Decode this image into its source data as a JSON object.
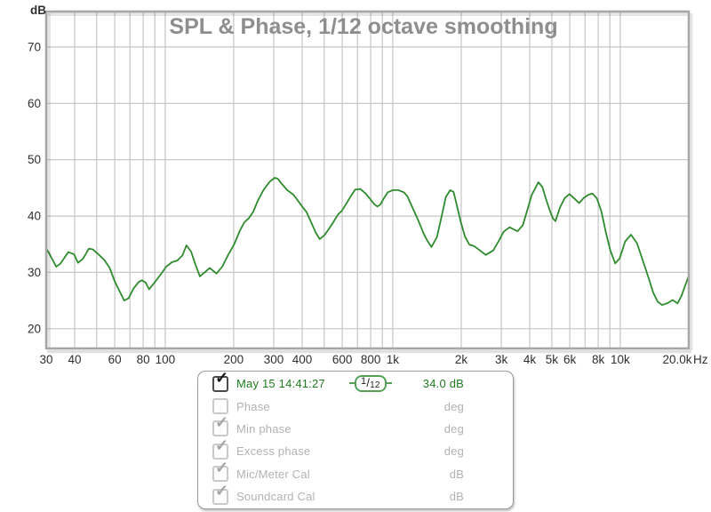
{
  "window": {
    "background": "#ffffff"
  },
  "icons": {
    "check": "✓"
  },
  "chart": {
    "title": "SPL & Phase, 1/12 octave smoothing",
    "y_unit_label": "dB",
    "x_unit_label": "Hz",
    "y_ticks": [
      70,
      60,
      50,
      40,
      30,
      20
    ],
    "x_tick_labels": [
      {
        "text": "30",
        "f": 30
      },
      {
        "text": "40",
        "f": 40
      },
      {
        "text": "60",
        "f": 60
      },
      {
        "text": "80",
        "f": 80
      },
      {
        "text": "100",
        "f": 100
      },
      {
        "text": "200",
        "f": 200
      },
      {
        "text": "300",
        "f": 300
      },
      {
        "text": "400",
        "f": 400
      },
      {
        "text": "600",
        "f": 600
      },
      {
        "text": "800",
        "f": 800
      },
      {
        "text": "1k",
        "f": 1000
      },
      {
        "text": "2k",
        "f": 2000
      },
      {
        "text": "3k",
        "f": 3000
      },
      {
        "text": "4k",
        "f": 4000
      },
      {
        "text": "5k",
        "f": 5000
      },
      {
        "text": "6k",
        "f": 6000
      },
      {
        "text": "8k",
        "f": 8000
      },
      {
        "text": "10k",
        "f": 10000
      },
      {
        "text": "20.0k",
        "f": 20000,
        "dx": -13
      }
    ],
    "colors": {
      "grid": "#c6c6c6",
      "frame": "#a6a6a6",
      "title": "#8e8e8e",
      "axis_text": "#2e2e2e",
      "curve": "#2e8b2e"
    }
  },
  "chart_data": {
    "type": "line",
    "title": "SPL & Phase, 1/12 octave smoothing",
    "xlabel": "Hz",
    "ylabel": "dB",
    "x_scale": "log",
    "xlim": [
      30,
      20000
    ],
    "ylim": [
      16.5,
      76.3
    ],
    "grid": {
      "x_lines": [
        40,
        50,
        60,
        70,
        80,
        90,
        100,
        200,
        300,
        400,
        500,
        600,
        700,
        800,
        900,
        1000,
        2000,
        3000,
        4000,
        5000,
        6000,
        7000,
        8000,
        9000,
        10000,
        20000
      ],
      "y_lines": [
        20,
        30,
        40,
        50,
        60,
        70
      ]
    },
    "legend_position": "bottom",
    "series": [
      {
        "name": "May 15 14:41:27",
        "color": "#2e8b2e",
        "smoothing": "1/12",
        "cursor_value": "34.0 dB",
        "points": [
          [
            30,
            34.2
          ],
          [
            30.8,
            33.5
          ],
          [
            33.2,
            31.0
          ],
          [
            34.7,
            31.6
          ],
          [
            37.5,
            33.6
          ],
          [
            39.8,
            33.2
          ],
          [
            41.4,
            31.7
          ],
          [
            43.5,
            32.4
          ],
          [
            46.2,
            34.2
          ],
          [
            48,
            34.1
          ],
          [
            50,
            33.5
          ],
          [
            54,
            32.2
          ],
          [
            57,
            30.8
          ],
          [
            60,
            28.4
          ],
          [
            63,
            26.7
          ],
          [
            66,
            25.0
          ],
          [
            69,
            25.4
          ],
          [
            72.5,
            27.1
          ],
          [
            76.5,
            28.3
          ],
          [
            79,
            28.6
          ],
          [
            82,
            28.2
          ],
          [
            85,
            27.0
          ],
          [
            89,
            28.0
          ],
          [
            95,
            29.5
          ],
          [
            101,
            31.0
          ],
          [
            107,
            31.8
          ],
          [
            113,
            32.1
          ],
          [
            119,
            33.0
          ],
          [
            124,
            34.8
          ],
          [
            130,
            33.7
          ],
          [
            136,
            31.3
          ],
          [
            142,
            29.3
          ],
          [
            150,
            30.1
          ],
          [
            157,
            30.8
          ],
          [
            168,
            29.8
          ],
          [
            178,
            31.0
          ],
          [
            189,
            33.1
          ],
          [
            201,
            35.0
          ],
          [
            213,
            37.4
          ],
          [
            223,
            38.9
          ],
          [
            233,
            39.6
          ],
          [
            244,
            40.8
          ],
          [
            255,
            42.7
          ],
          [
            271,
            44.7
          ],
          [
            288,
            46.1
          ],
          [
            303,
            46.8
          ],
          [
            313,
            46.6
          ],
          [
            324,
            45.8
          ],
          [
            344,
            44.6
          ],
          [
            366,
            43.8
          ],
          [
            382,
            42.8
          ],
          [
            400,
            41.7
          ],
          [
            418,
            40.7
          ],
          [
            438,
            38.9
          ],
          [
            458,
            37.1
          ],
          [
            478,
            35.9
          ],
          [
            501,
            36.6
          ],
          [
            524,
            37.7
          ],
          [
            548,
            38.9
          ],
          [
            573,
            40.2
          ],
          [
            599,
            41.0
          ],
          [
            627,
            42.3
          ],
          [
            656,
            43.6
          ],
          [
            684,
            44.7
          ],
          [
            720,
            44.8
          ],
          [
            760,
            44.0
          ],
          [
            800,
            42.9
          ],
          [
            830,
            42.1
          ],
          [
            855,
            41.7
          ],
          [
            880,
            42.0
          ],
          [
            910,
            43.0
          ],
          [
            950,
            44.2
          ],
          [
            1000,
            44.6
          ],
          [
            1060,
            44.6
          ],
          [
            1120,
            44.2
          ],
          [
            1160,
            43.5
          ],
          [
            1212,
            41.8
          ],
          [
            1290,
            39.4
          ],
          [
            1370,
            36.8
          ],
          [
            1420,
            35.6
          ],
          [
            1480,
            34.5
          ],
          [
            1565,
            36.3
          ],
          [
            1637,
            39.8
          ],
          [
            1712,
            43.4
          ],
          [
            1790,
            44.6
          ],
          [
            1850,
            44.3
          ],
          [
            1900,
            42.4
          ],
          [
            1990,
            39.0
          ],
          [
            2080,
            36.3
          ],
          [
            2175,
            34.9
          ],
          [
            2275,
            34.7
          ],
          [
            2415,
            33.9
          ],
          [
            2565,
            33.1
          ],
          [
            2765,
            33.9
          ],
          [
            2935,
            35.7
          ],
          [
            3070,
            37.2
          ],
          [
            3260,
            38.0
          ],
          [
            3535,
            37.3
          ],
          [
            3730,
            38.4
          ],
          [
            3900,
            41.0
          ],
          [
            4080,
            43.7
          ],
          [
            4365,
            46.0
          ],
          [
            4550,
            45.1
          ],
          [
            4750,
            42.6
          ],
          [
            4900,
            41.0
          ],
          [
            5050,
            39.6
          ],
          [
            5190,
            39.1
          ],
          [
            5430,
            41.5
          ],
          [
            5700,
            43.2
          ],
          [
            5980,
            43.9
          ],
          [
            6250,
            43.2
          ],
          [
            6590,
            42.3
          ],
          [
            6900,
            43.2
          ],
          [
            7250,
            43.8
          ],
          [
            7550,
            44.0
          ],
          [
            7900,
            43.1
          ],
          [
            8260,
            40.8
          ],
          [
            8640,
            37.1
          ],
          [
            9040,
            33.9
          ],
          [
            9500,
            31.6
          ],
          [
            9940,
            32.5
          ],
          [
            10500,
            35.5
          ],
          [
            11150,
            36.7
          ],
          [
            11840,
            35.2
          ],
          [
            12560,
            32.1
          ],
          [
            13340,
            28.9
          ],
          [
            13960,
            26.4
          ],
          [
            14600,
            24.8
          ],
          [
            15270,
            24.2
          ],
          [
            16220,
            24.6
          ],
          [
            16970,
            25.1
          ],
          [
            17840,
            24.5
          ],
          [
            18560,
            25.8
          ],
          [
            19250,
            27.6
          ],
          [
            20000,
            29.4
          ]
        ]
      }
    ]
  },
  "legend": {
    "rows": [
      {
        "label": "May 15 14:41:27",
        "value": "34.0 dB",
        "checked": true,
        "enabled": true,
        "smoothing": "1/12"
      },
      {
        "label": "Phase",
        "value": "deg",
        "checked": false,
        "enabled": false
      },
      {
        "label": "Min phase",
        "value": "deg",
        "checked": true,
        "enabled": false
      },
      {
        "label": "Excess phase",
        "value": "deg",
        "checked": true,
        "enabled": false
      },
      {
        "label": "Mic/Meter Cal",
        "value": "dB",
        "checked": true,
        "enabled": false
      },
      {
        "label": "Soundcard Cal",
        "value": "dB",
        "checked": true,
        "enabled": false
      }
    ]
  }
}
